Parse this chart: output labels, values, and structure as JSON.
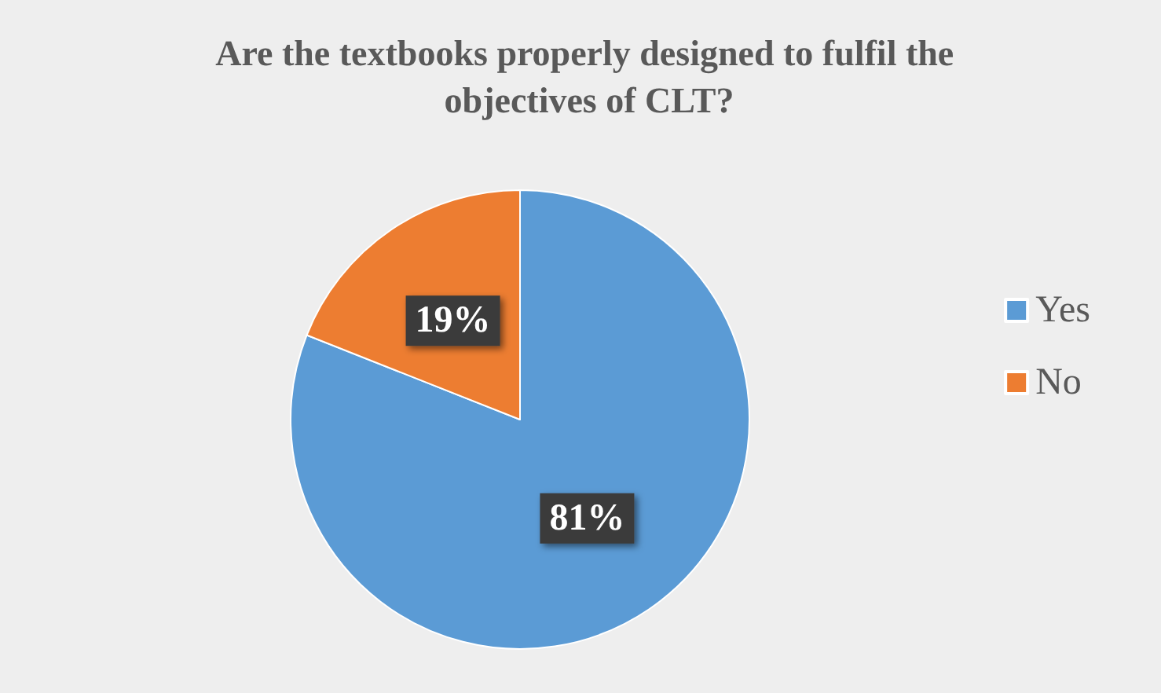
{
  "chart_data": {
    "type": "pie",
    "title": "Are the textbooks properly designed to fulfil the objectives of CLT?",
    "categories": [
      "Yes",
      "No"
    ],
    "values": [
      81,
      19
    ],
    "colors": [
      "#5b9bd5",
      "#ed7d31"
    ],
    "value_labels": [
      "81%",
      "19%"
    ],
    "legend": "right"
  }
}
